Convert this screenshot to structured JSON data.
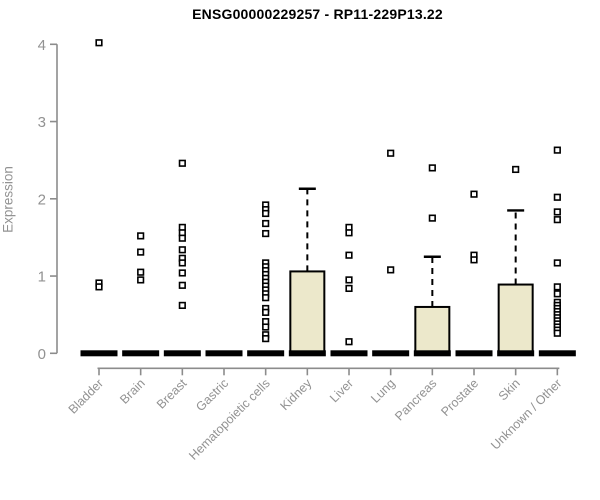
{
  "page": {
    "background": "#ffffff"
  },
  "chart_data": {
    "type": "boxplot",
    "title": "ENSG00000229257 - RP11-229P13.22",
    "ylabel": "Expression",
    "xlabel": "",
    "ylim": [
      0,
      4
    ],
    "yticks": [
      0,
      1,
      2,
      3,
      4
    ],
    "grid": false,
    "legend": false,
    "categories": [
      "Bladder",
      "Brain",
      "Breast",
      "Gastric",
      "Hematopoietic cells",
      "Kidney",
      "Liver",
      "Lung",
      "Pancreas",
      "Prostate",
      "Skin",
      "Unknown / Other"
    ],
    "series": [
      {
        "category": "Bladder",
        "q1": 0,
        "median": 0,
        "q3": 0,
        "whisker_low": 0,
        "whisker_high": 0,
        "outliers": [
          4.02,
          0.91,
          0.86
        ]
      },
      {
        "category": "Brain",
        "q1": 0,
        "median": 0,
        "q3": 0,
        "whisker_low": 0,
        "whisker_high": 0,
        "outliers": [
          1.52,
          1.31,
          1.05,
          0.95
        ]
      },
      {
        "category": "Breast",
        "q1": 0,
        "median": 0,
        "q3": 0,
        "whisker_low": 0,
        "whisker_high": 0,
        "outliers": [
          2.46,
          1.63,
          1.56,
          1.49,
          1.34,
          1.23,
          1.17,
          1.04,
          0.88,
          0.62
        ]
      },
      {
        "category": "Gastric",
        "q1": 0,
        "median": 0,
        "q3": 0,
        "whisker_low": 0,
        "whisker_high": 0,
        "outliers": []
      },
      {
        "category": "Hematopoietic cells",
        "q1": 0,
        "median": 0,
        "q3": 0,
        "whisker_low": 0,
        "whisker_high": 0,
        "outliers": [
          1.92,
          1.86,
          1.81,
          1.68,
          1.55,
          1.17,
          1.12,
          1.07,
          1.02,
          0.97,
          0.92,
          0.87,
          0.82,
          0.77,
          0.72,
          0.58,
          0.53,
          0.41,
          0.34,
          0.24,
          0.19
        ]
      },
      {
        "category": "Kidney",
        "q1": 0,
        "median": 0,
        "q3": 1.06,
        "whisker_low": 0,
        "whisker_high": 2.13,
        "outliers": []
      },
      {
        "category": "Liver",
        "q1": 0,
        "median": 0,
        "q3": 0,
        "whisker_low": 0,
        "whisker_high": 0,
        "outliers": [
          1.63,
          1.56,
          1.27,
          0.95,
          0.84,
          0.15
        ]
      },
      {
        "category": "Lung",
        "q1": 0,
        "median": 0,
        "q3": 0,
        "whisker_low": 0,
        "whisker_high": 0,
        "outliers": [
          2.59,
          1.08
        ]
      },
      {
        "category": "Pancreas",
        "q1": 0,
        "median": 0,
        "q3": 0.6,
        "whisker_low": 0,
        "whisker_high": 1.25,
        "outliers": [
          2.4,
          1.75
        ]
      },
      {
        "category": "Prostate",
        "q1": 0,
        "median": 0,
        "q3": 0,
        "whisker_low": 0,
        "whisker_high": 0,
        "outliers": [
          2.06,
          1.27,
          1.21
        ]
      },
      {
        "category": "Skin",
        "q1": 0,
        "median": 0,
        "q3": 0.89,
        "whisker_low": 0,
        "whisker_high": 1.85,
        "outliers": [
          2.38
        ]
      },
      {
        "category": "Unknown / Other",
        "q1": 0,
        "median": 0,
        "q3": 0,
        "whisker_low": 0,
        "whisker_high": 0,
        "outliers": [
          2.63,
          2.02,
          1.83,
          1.73,
          1.17,
          0.86,
          0.77,
          0.66,
          0.62,
          0.58,
          0.54,
          0.5,
          0.46,
          0.42,
          0.38,
          0.34,
          0.3,
          0.26
        ]
      }
    ]
  },
  "style": {
    "box_fill": "#ECE8CB",
    "box_stroke": "#000000",
    "median_color": "#000000",
    "whisker_color": "#000000",
    "outlier_stroke": "#000000",
    "outlier_fill": "#ffffff",
    "axis_color": "#8C8C8C",
    "tick_label_color": "#929292",
    "title_color": "#000000"
  }
}
